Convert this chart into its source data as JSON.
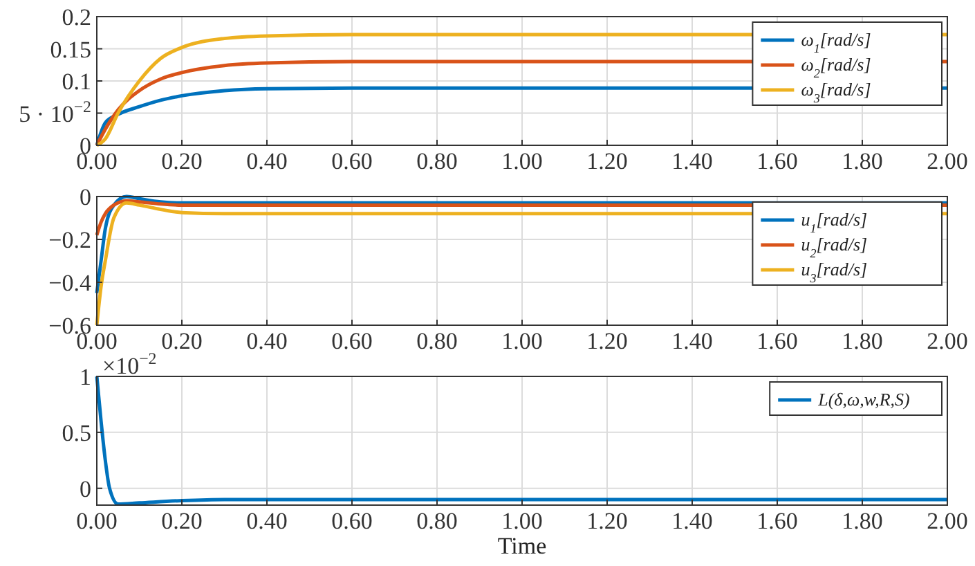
{
  "chart_data": [
    {
      "type": "line",
      "x": [
        0,
        0.02,
        0.05,
        0.1,
        0.15,
        0.2,
        0.3,
        0.4,
        0.6,
        1,
        2
      ],
      "xlim": [
        0,
        2
      ],
      "xticks": [
        {
          "value": 0,
          "label": "0.00"
        },
        {
          "value": 0.2,
          "label": "0.20"
        },
        {
          "value": 0.4,
          "label": "0.40"
        },
        {
          "value": 0.6,
          "label": "0.60"
        },
        {
          "value": 0.8,
          "label": "0.80"
        },
        {
          "value": 1,
          "label": "1.00"
        },
        {
          "value": 1.2,
          "label": "1.20"
        },
        {
          "value": 1.4,
          "label": "1.40"
        },
        {
          "value": 1.6,
          "label": "1.60"
        },
        {
          "value": 1.8,
          "label": "1.80"
        },
        {
          "value": 2,
          "label": "2.00"
        }
      ],
      "ylim": [
        0,
        0.2
      ],
      "yticks": [
        0,
        {
          "value": 0.05,
          "label": "5 · 10$^{−2}$"
        },
        0.1,
        0.15,
        0.2
      ],
      "grid": true,
      "legend": "top right",
      "series": [
        {
          "name": "ω$_{1}$[rad/s]",
          "color": "#0072bd",
          "values": [
            0,
            0.035,
            0.048,
            0.06,
            0.07,
            0.077,
            0.085,
            0.088,
            0.089,
            0.089,
            0.089
          ]
        },
        {
          "name": "ω$_{2}$[rad/s]",
          "color": "#d95319",
          "values": [
            0,
            0.025,
            0.055,
            0.085,
            0.103,
            0.113,
            0.124,
            0.128,
            0.13,
            0.13,
            0.13
          ]
        },
        {
          "name": "ω$_{3}$[rad/s]",
          "color": "#edb120",
          "values": [
            0,
            0.01,
            0.05,
            0.1,
            0.135,
            0.152,
            0.166,
            0.17,
            0.172,
            0.172,
            0.172
          ]
        }
      ]
    },
    {
      "type": "line",
      "x": [
        0,
        0.01,
        0.02,
        0.04,
        0.07,
        0.1,
        0.15,
        0.2,
        0.3,
        0.6,
        1,
        2
      ],
      "xlim": [
        0,
        2
      ],
      "xticks": [
        {
          "value": 0,
          "label": "0.00"
        },
        {
          "value": 0.2,
          "label": "0.20"
        },
        {
          "value": 0.4,
          "label": "0.40"
        },
        {
          "value": 0.6,
          "label": "0.60"
        },
        {
          "value": 0.8,
          "label": "0.80"
        },
        {
          "value": 1,
          "label": "1.00"
        },
        {
          "value": 1.2,
          "label": "1.20"
        },
        {
          "value": 1.4,
          "label": "1.40"
        },
        {
          "value": 1.6,
          "label": "1.60"
        },
        {
          "value": 1.8,
          "label": "1.80"
        },
        {
          "value": 2,
          "label": "2.00"
        }
      ],
      "ylim": [
        -0.6,
        0
      ],
      "yticks": [
        -0.6,
        -0.4,
        -0.2,
        0
      ],
      "grid": true,
      "legend": "top right",
      "series": [
        {
          "name": "u$_{1}$[rad/s]",
          "color": "#0072bd",
          "values": [
            -0.45,
            -0.3,
            -0.15,
            -0.04,
            0,
            -0.01,
            -0.025,
            -0.03,
            -0.03,
            -0.03,
            -0.03,
            -0.03
          ]
        },
        {
          "name": "u$_{2}$[rad/s]",
          "color": "#d95319",
          "values": [
            -0.18,
            -0.12,
            -0.08,
            -0.04,
            -0.02,
            -0.025,
            -0.035,
            -0.04,
            -0.04,
            -0.04,
            -0.04,
            -0.04
          ]
        },
        {
          "name": "u$_{3}$[rad/s]",
          "color": "#edb120",
          "values": [
            -0.6,
            -0.42,
            -0.3,
            -0.1,
            -0.03,
            -0.04,
            -0.06,
            -0.075,
            -0.08,
            -0.08,
            -0.08,
            -0.08
          ]
        }
      ]
    },
    {
      "type": "line",
      "x": [
        0,
        0.01,
        0.02,
        0.03,
        0.05,
        0.1,
        0.2,
        0.3,
        0.6,
        1,
        2
      ],
      "xlim": [
        0,
        2
      ],
      "xticks": [
        {
          "value": 0,
          "label": "0.00"
        },
        {
          "value": 0.2,
          "label": "0.20"
        },
        {
          "value": 0.4,
          "label": "0.40"
        },
        {
          "value": 0.6,
          "label": "0.60"
        },
        {
          "value": 0.8,
          "label": "0.80"
        },
        {
          "value": 1,
          "label": "1.00"
        },
        {
          "value": 1.2,
          "label": "1.20"
        },
        {
          "value": 1.4,
          "label": "1.40"
        },
        {
          "value": 1.6,
          "label": "1.60"
        },
        {
          "value": 1.8,
          "label": "1.80"
        },
        {
          "value": 2,
          "label": "2.00"
        }
      ],
      "ylim": [
        -0.15,
        1
      ],
      "yticks": [
        0,
        0.5,
        1
      ],
      "grid": true,
      "legend": "top right",
      "xlabel": "Time",
      "annotations": [
        "×10$^{−2}$"
      ],
      "series": [
        {
          "name": "L(δ,ω,w,R,S)",
          "color": "#0072bd",
          "values": [
            1,
            0.6,
            0.25,
            0,
            -0.14,
            -0.13,
            -0.11,
            -0.1,
            -0.1,
            -0.1,
            -0.1
          ]
        }
      ]
    }
  ]
}
